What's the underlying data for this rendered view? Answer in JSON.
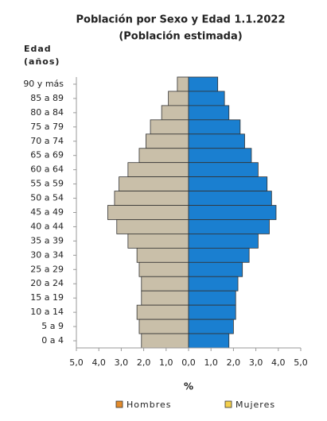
{
  "chart_data": {
    "type": "pyramid",
    "title": "Población por Sexo y Edad 1.1.2022",
    "subtitle": "(Población estimada)",
    "y_label": [
      "Edad",
      "(años)"
    ],
    "x_label": "%",
    "categories": [
      "90 y más",
      "85 a 89",
      "80 a 84",
      "75 a 79",
      "70 a 74",
      "65 a 69",
      "60 a 64",
      "55 a 59",
      "50 a 54",
      "45 a 49",
      "40 a 44",
      "35 a 39",
      "30 a 34",
      "25 a 29",
      "20 a 24",
      "15 a 19",
      "10 a 14",
      "5 a 9",
      "0 a 4"
    ],
    "series": [
      {
        "name": "Hombres",
        "side": "left",
        "color": "#c9bfa9",
        "legend_color": "#e38b2c",
        "values": [
          0.5,
          0.9,
          1.2,
          1.7,
          1.9,
          2.2,
          2.7,
          3.1,
          3.3,
          3.6,
          3.2,
          2.7,
          2.3,
          2.2,
          2.1,
          2.1,
          2.3,
          2.2,
          2.1
        ]
      },
      {
        "name": "Mujeres",
        "side": "right",
        "color": "#1a7fd0",
        "legend_color": "#f4d04c",
        "values": [
          1.3,
          1.6,
          1.8,
          2.3,
          2.5,
          2.8,
          3.1,
          3.5,
          3.7,
          3.9,
          3.6,
          3.1,
          2.7,
          2.4,
          2.2,
          2.1,
          2.1,
          2.0,
          1.8
        ]
      }
    ],
    "xlim": [
      -5,
      5
    ],
    "xticks": [
      {
        "value": -5,
        "label": "5,0"
      },
      {
        "value": -4,
        "label": "4,0"
      },
      {
        "value": -3,
        "label": "3,0"
      },
      {
        "value": -2,
        "label": "2,0"
      },
      {
        "value": -1,
        "label": "1,0"
      },
      {
        "value": 0,
        "label": "0,0"
      },
      {
        "value": 1,
        "label": "1,0"
      },
      {
        "value": 2,
        "label": "2,0"
      },
      {
        "value": 3,
        "label": "3,0"
      },
      {
        "value": 4,
        "label": "4,0"
      },
      {
        "value": 5,
        "label": "5,0"
      }
    ]
  }
}
